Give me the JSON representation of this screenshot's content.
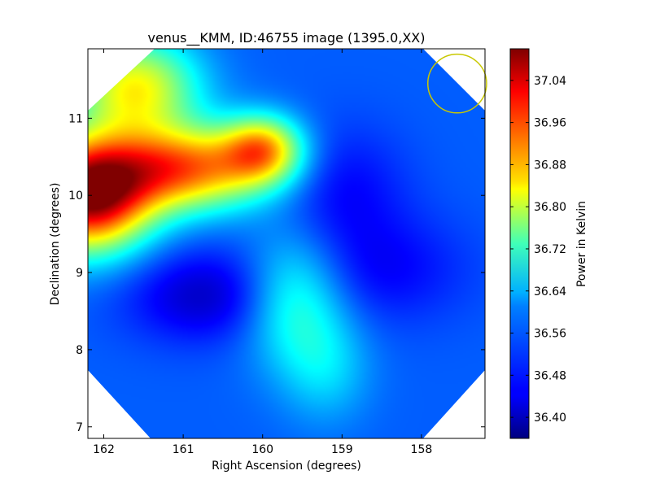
{
  "chart_data": {
    "type": "heatmap",
    "title": "venus__KMM, ID:46755 image (1395.0,XX)",
    "xlabel": "Right Ascension (degrees)",
    "ylabel": "Declination (degrees)",
    "xlim": [
      162.2,
      157.2
    ],
    "ylim": [
      6.85,
      11.9
    ],
    "x_ticks": [
      162,
      161,
      160,
      159,
      158
    ],
    "y_ticks": [
      7,
      8,
      9,
      10,
      11
    ],
    "grid": false,
    "colorbar": {
      "label": "Power in Kelvin",
      "colormap": "jet",
      "range": [
        36.36,
        37.1
      ],
      "ticks": [
        36.4,
        36.48,
        36.56,
        36.64,
        36.72,
        36.8,
        36.88,
        36.96,
        37.04
      ]
    },
    "baseline_power": 36.52,
    "features": [
      {
        "ra": 162.2,
        "dec": 10.0,
        "power": 37.09,
        "sigma": [
          0.55,
          0.5
        ]
      },
      {
        "ra": 161.0,
        "dec": 10.35,
        "power": 36.92,
        "sigma": [
          0.75,
          0.38
        ]
      },
      {
        "ra": 160.0,
        "dec": 10.6,
        "power": 36.83,
        "sigma": [
          0.35,
          0.3
        ]
      },
      {
        "ra": 161.6,
        "dec": 11.4,
        "power": 36.82,
        "sigma": [
          0.55,
          0.45
        ]
      },
      {
        "ra": 159.6,
        "dec": 8.65,
        "power": 36.68,
        "sigma": [
          0.45,
          0.6
        ]
      },
      {
        "ra": 159.2,
        "dec": 7.75,
        "power": 36.6,
        "sigma": [
          0.4,
          0.5
        ]
      },
      {
        "ra": 160.7,
        "dec": 8.7,
        "power": 36.41,
        "sigma": [
          0.7,
          0.42
        ]
      },
      {
        "ra": 159.0,
        "dec": 10.1,
        "power": 36.45,
        "sigma": [
          0.55,
          0.55
        ]
      },
      {
        "ra": 158.5,
        "dec": 9.05,
        "power": 36.45,
        "sigma": [
          0.75,
          0.5
        ]
      }
    ],
    "beam_circle": {
      "ra": 157.55,
      "dec": 11.45,
      "radius_deg": 0.37,
      "color": "#c8c800"
    }
  }
}
